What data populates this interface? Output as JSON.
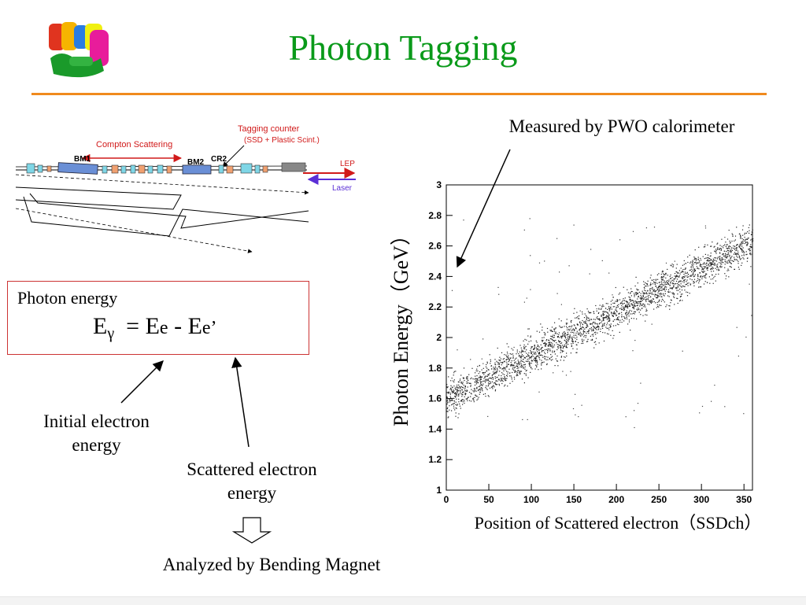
{
  "title": "Photon Tagging",
  "logo": {
    "icon": "lep-logo-icon"
  },
  "beamline": {
    "compton_label": "Compton Scattering",
    "tagging_line1": "Tagging counter",
    "tagging_line2": "(SSD + Plastic Scint.)",
    "bm1": "BM1",
    "bm2": "BM2",
    "cr2": "CR2",
    "lep": "LEP",
    "laser": "Laser"
  },
  "formula_box": {
    "title": "Photon energy",
    "e_main": "E",
    "e_sub": "γ",
    "equals": "= E",
    "e_small": "e",
    "minus": "- E",
    "e_prime": "e’"
  },
  "labels": {
    "initial": "Initial electron energy",
    "scattered": "Scattered electron energy",
    "analyzed": "Analyzed by Bending Magnet",
    "measured": "Measured by PWO calorimeter"
  },
  "chart_data": {
    "type": "scatter",
    "xlabel": "Position of Scattered electron（SSDch）",
    "ylabel": "Photon Energy（GeV）",
    "xlim": [
      0,
      360
    ],
    "ylim": [
      1,
      3
    ],
    "x_ticks": [
      0,
      50,
      100,
      150,
      200,
      250,
      300,
      350
    ],
    "y_ticks": [
      1,
      1.2,
      1.4,
      1.6,
      1.8,
      2,
      2.2,
      2.4,
      2.6,
      2.8,
      3
    ],
    "y_tick_labels": [
      "1",
      "1.2",
      "1.4",
      "1.6",
      "1.8",
      "2",
      "2.2",
      "2.4",
      "2.6",
      "2.8",
      "3"
    ],
    "trend": {
      "x": [
        0,
        350
      ],
      "y": [
        1.6,
        2.6
      ]
    },
    "band_halfwidth_gev": 0.12,
    "n_points": 2600
  },
  "colors": {
    "title": "#0a9a1a",
    "rule": "#f08a1e",
    "box_border": "#cc3333",
    "compton": "#d11a1a",
    "laser": "#5b2fd6"
  }
}
